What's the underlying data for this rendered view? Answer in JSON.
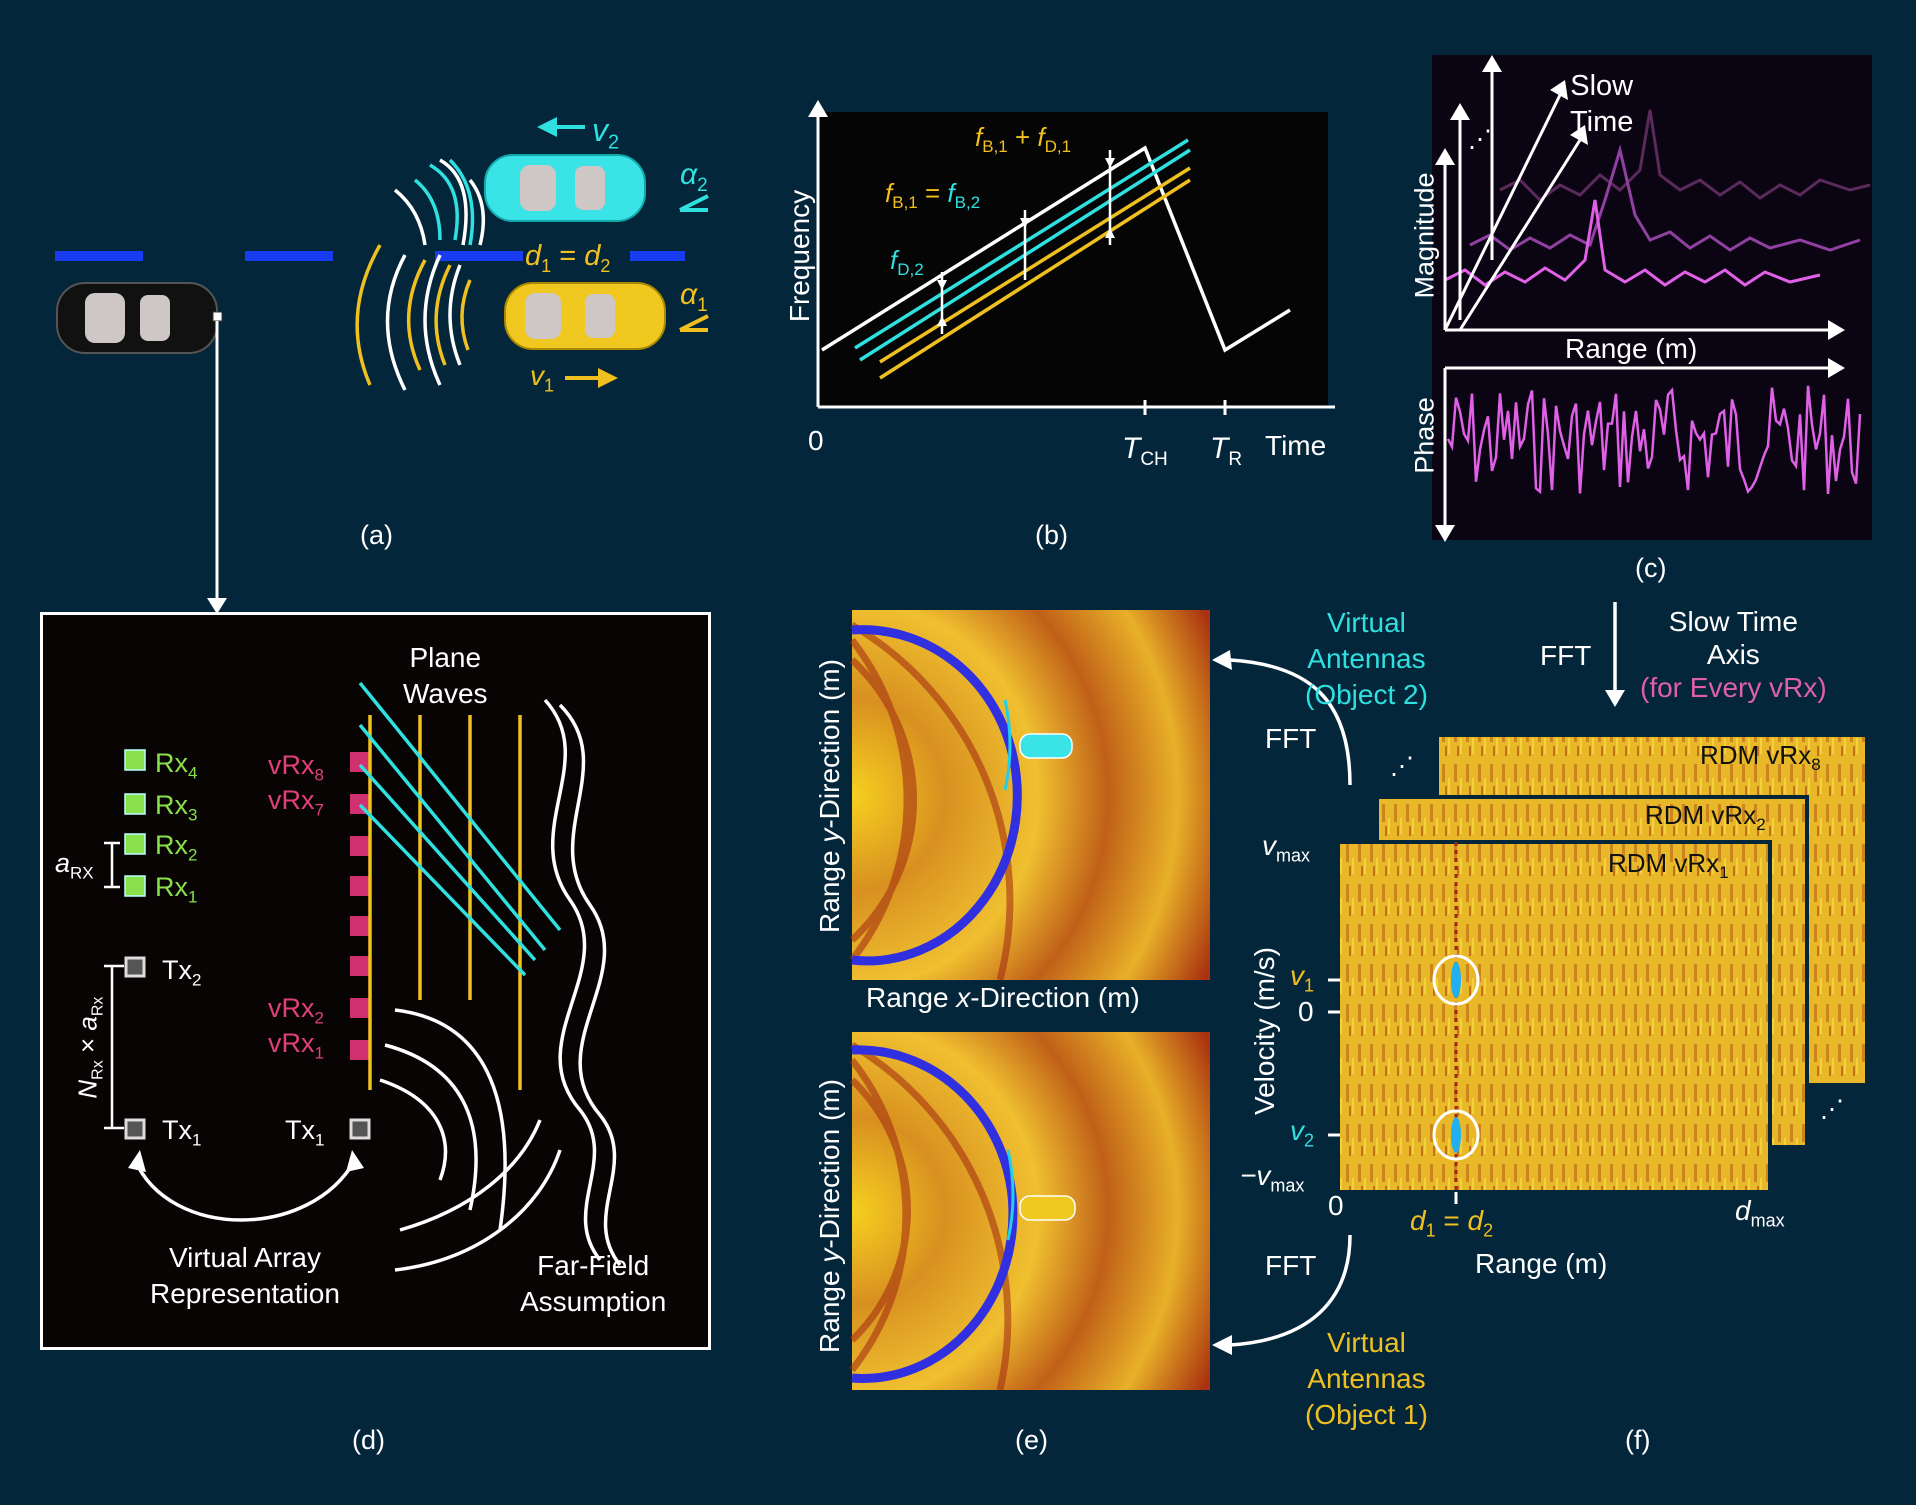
{
  "colors": {
    "background": "#04263a",
    "cyan": "#2fe0e0",
    "yellow": "#f0c020",
    "pink": "#e040a0",
    "green": "#88e04a",
    "magenta": "#e060e8",
    "white": "#ffffff"
  },
  "panels": {
    "a": "(a)",
    "b": "(b)",
    "c": "(c)",
    "d": "(d)",
    "e": "(e)",
    "f": "(f)"
  },
  "panel_a": {
    "v2": "v",
    "v2_sub": "2",
    "v1": "v",
    "v1_sub": "1",
    "alpha2": "α",
    "alpha2_sub": "2",
    "alpha1": "α",
    "alpha1_sub": "1",
    "distance_d1": "d",
    "distance_d1_sub": "1",
    "distance_eq": " = ",
    "distance_d2": "d",
    "distance_d2_sub": "2"
  },
  "panel_b": {
    "y_label": "Frequency",
    "x_label": "Time",
    "origin": "0",
    "t_ch": "T",
    "t_ch_sub": "CH",
    "t_r": "T",
    "t_r_sub": "R",
    "f_sum": {
      "a": "f",
      "a_sub": "B,1",
      "plus": " + ",
      "b": "f",
      "b_sub": "D,1"
    },
    "f_eq": {
      "a": "f",
      "a_sub": "B,1",
      "eq": " = ",
      "b": "f",
      "b_sub": "B,2"
    },
    "f_d2": {
      "a": "f",
      "a_sub": "D,2"
    }
  },
  "panel_c": {
    "slow_time_1": "Slow",
    "slow_time_2": "Time",
    "magnitude": "Magnitude",
    "phase": "Phase",
    "range": "Range (m)",
    "dots": "⋰"
  },
  "panel_d": {
    "plane_waves_1": "Plane",
    "plane_waves_2": "Waves",
    "rx": [
      {
        "t": "Rx",
        "s": "4"
      },
      {
        "t": "Rx",
        "s": "3"
      },
      {
        "t": "Rx",
        "s": "2"
      },
      {
        "t": "Rx",
        "s": "1"
      }
    ],
    "vrx_top": [
      {
        "t": "vRx",
        "s": "8"
      },
      {
        "t": "vRx",
        "s": "7"
      }
    ],
    "vrx_bottom": [
      {
        "t": "vRx",
        "s": "2"
      },
      {
        "t": "vRx",
        "s": "1"
      }
    ],
    "tx": [
      {
        "t": "Tx",
        "s": "2"
      },
      {
        "t": "Tx",
        "s": "1"
      }
    ],
    "tx_virtual": {
      "t": "Tx",
      "s": "1"
    },
    "a_rx": {
      "t": "a",
      "s": "RX"
    },
    "n_rx": "N",
    "n_rx_sub": "Rx",
    "times": " × ",
    "a_rx2": "a",
    "a_rx2_sub": "Rx",
    "virtual_1": "Virtual Array",
    "virtual_2": "Representation",
    "far_1": "Far-Field",
    "far_2": "Assumption"
  },
  "panel_e": {
    "y_label": "Range y-Direction (m)",
    "x_label": "Range x-Direction (m)",
    "y_label_1": "Range ",
    "y_label_i": "y",
    "y_label_2": "-Direction (m)",
    "x_label_1": "Range ",
    "x_label_i": "x",
    "x_label_2": "-Direction (m)"
  },
  "panel_f": {
    "va2_1": "Virtual",
    "va2_2": "Antennas",
    "va2_3": "(Object 2)",
    "va1_1": "Virtual",
    "va1_2": "Antennas",
    "va1_3": "(Object 1)",
    "fft": "FFT",
    "slow_1": "Slow Time",
    "slow_2": "Axis",
    "slow_3": "(for Every vRx)",
    "rdm": [
      {
        "t": "RDM vRx",
        "s": "8"
      },
      {
        "t": "RDM vRx",
        "s": "2"
      },
      {
        "t": "RDM vRx",
        "s": "1"
      }
    ],
    "vmax": "v",
    "vmax_sub": "max",
    "neg_vmax": "−v",
    "neg_vmax_sub": "max",
    "v1": "v",
    "v1_sub": "1",
    "v2": "v",
    "v2_sub": "2",
    "zero": "0",
    "y_label": "Velocity (m/s)",
    "x_label": "Range (m)",
    "d_eq": {
      "a": "d",
      "a_sub": "1",
      "eq": " = ",
      "b": "d",
      "b_sub": "2"
    },
    "dmax": "d",
    "dmax_sub": "max",
    "dots": "⋰"
  }
}
